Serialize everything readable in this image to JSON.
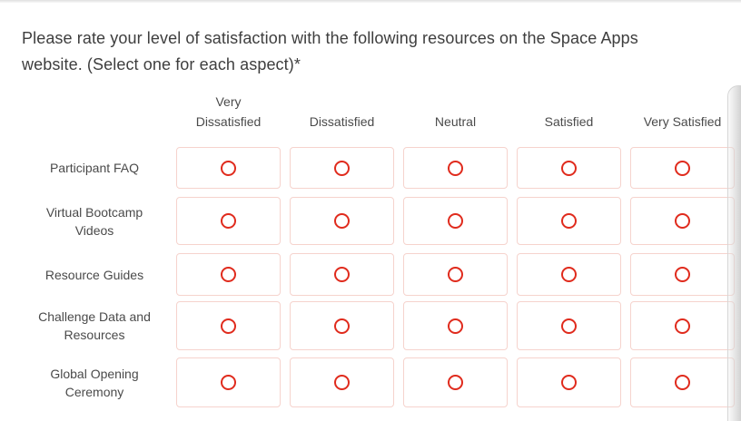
{
  "question": {
    "text": "Please rate your level of satisfaction with the following resources on the Space Apps\nwebsite. (Select one for each aspect)*",
    "required_marker": "*"
  },
  "matrix": {
    "columns": [
      "Very Dissatisfied",
      "Dissatisfied",
      "Neutral",
      "Satisfied",
      "Very Satisfied"
    ],
    "rows": [
      {
        "label": "Participant FAQ",
        "selected": null
      },
      {
        "label": "Virtual Bootcamp Videos",
        "selected": null
      },
      {
        "label": "Resource Guides",
        "selected": null
      },
      {
        "label": "Challenge Data and Resources",
        "selected": null
      },
      {
        "label": "Global Opening Ceremony",
        "selected": null
      }
    ]
  },
  "colors": {
    "radio_outline": "#e02b1d",
    "cell_border": "#f6d3cd",
    "question_text": "#3e3e3e",
    "label_text": "#4a4a4a"
  }
}
